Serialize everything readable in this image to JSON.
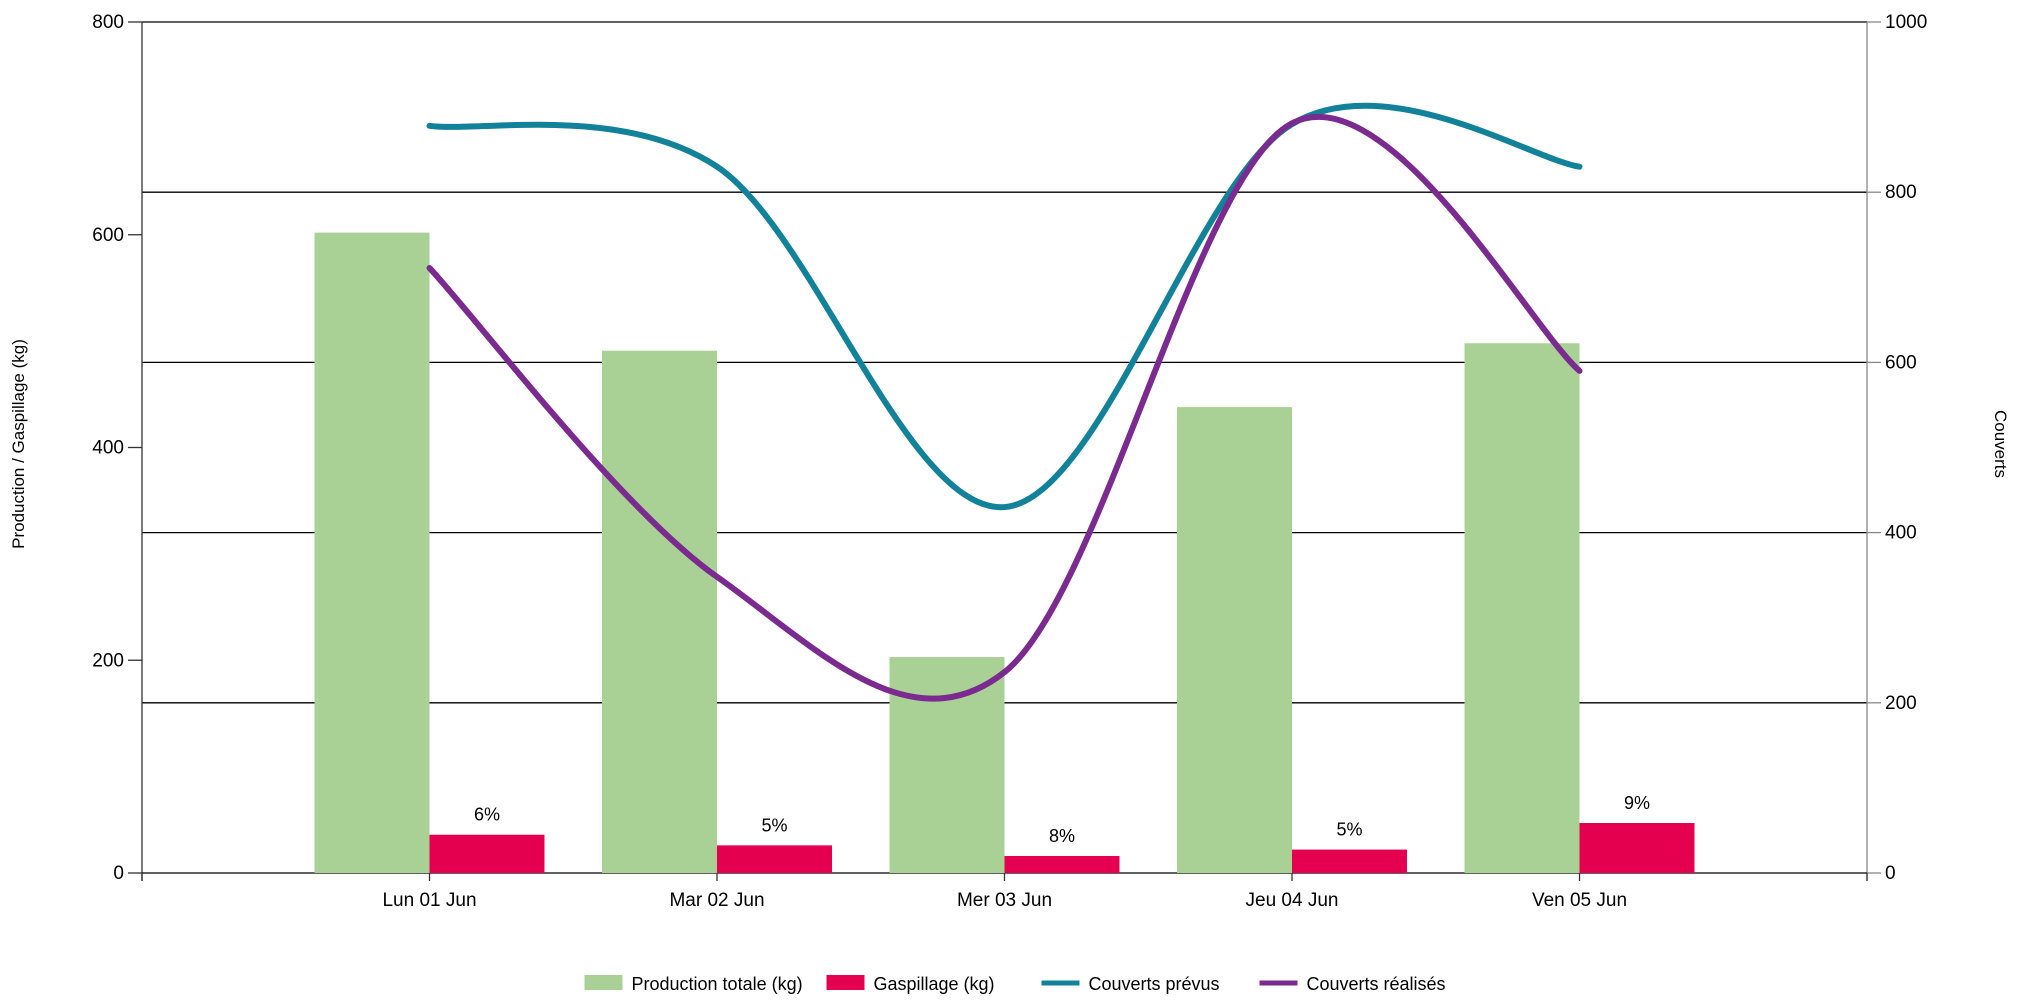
{
  "chart_data": {
    "type": "bar",
    "title": "",
    "categories": [
      "Lun 01 Jun",
      "Mar 02 Jun",
      "Mer 03 Jun",
      "Jeu 04 Jun",
      "Ven 05 Jun"
    ],
    "y_left": {
      "label": "Production / Gaspillage (kg)",
      "lim": [
        0,
        800
      ],
      "ticks": [
        0,
        200,
        400,
        600,
        800
      ]
    },
    "y_right": {
      "label": "Couverts",
      "lim": [
        0,
        1000
      ],
      "ticks": [
        0,
        200,
        400,
        600,
        800,
        1000
      ]
    },
    "grid": true,
    "legend_position": "bottom",
    "series": [
      {
        "name": "Production totale (kg)",
        "kind": "bar",
        "axis": "left",
        "color": "#a9d195",
        "values": [
          602,
          491,
          203,
          438,
          498
        ]
      },
      {
        "name": "Gaspillage (kg)",
        "kind": "bar",
        "axis": "left",
        "color": "#e5004f",
        "values": [
          36,
          26,
          16,
          22,
          47
        ],
        "data_labels": [
          "6%",
          "5%",
          "8%",
          "5%",
          "9%"
        ]
      },
      {
        "name": "Couverts prévus",
        "kind": "line",
        "axis": "right",
        "color": "#12829a",
        "smooth": true,
        "values": [
          878,
          830,
          430,
          880,
          830
        ]
      },
      {
        "name": "Couverts réalisés",
        "kind": "line",
        "axis": "right",
        "color": "#7b2a8f",
        "smooth": true,
        "values": [
          711,
          348,
          236,
          881,
          590
        ]
      }
    ]
  }
}
